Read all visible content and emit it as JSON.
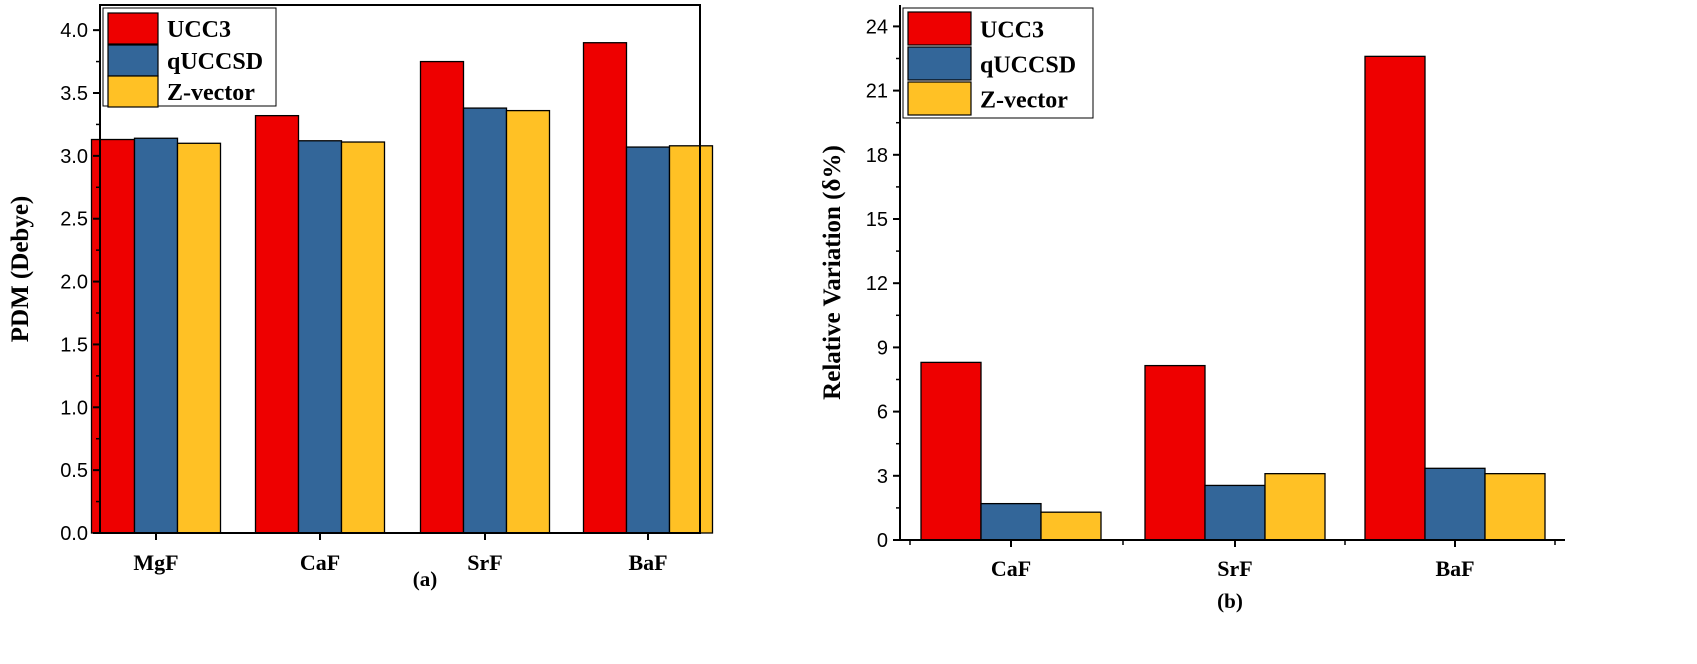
{
  "chart_data": [
    {
      "type": "bar",
      "panel_label": "(a)",
      "ylabel": "PDM (Debye)",
      "xlabel": "",
      "ylim": [
        0,
        4.2
      ],
      "yticks": [
        "0.0",
        "0.5",
        "1.0",
        "1.5",
        "2.0",
        "2.5",
        "3.0",
        "3.5",
        "4.0"
      ],
      "categories": [
        "MgF",
        "CaF",
        "SrF",
        "BaF"
      ],
      "series": [
        {
          "name": "UCC3",
          "color": "#ee0000",
          "values": [
            3.13,
            3.32,
            3.75,
            3.9
          ]
        },
        {
          "name": "qUCCSD",
          "color": "#336699",
          "values": [
            3.14,
            3.12,
            3.38,
            3.07
          ]
        },
        {
          "name": "Z-vector",
          "color": "#ffc125",
          "values": [
            3.1,
            3.11,
            3.36,
            3.08
          ]
        }
      ],
      "legend": "top-left",
      "grid": false
    },
    {
      "type": "bar",
      "panel_label": "(b)",
      "ylabel": "Relative Variation (δ%)",
      "xlabel": "",
      "ylim": [
        0,
        25
      ],
      "yticks": [
        "0",
        "3",
        "6",
        "9",
        "12",
        "15",
        "18",
        "21",
        "24"
      ],
      "categories": [
        "CaF",
        "SrF",
        "BaF"
      ],
      "series": [
        {
          "name": "UCC3",
          "color": "#ee0000",
          "values": [
            8.3,
            8.15,
            22.6
          ]
        },
        {
          "name": "qUCCSD",
          "color": "#336699",
          "values": [
            1.7,
            2.55,
            3.35
          ]
        },
        {
          "name": "Z-vector",
          "color": "#ffc125",
          "values": [
            1.3,
            3.1,
            3.1
          ]
        }
      ],
      "legend": "top-left",
      "grid": false
    }
  ]
}
